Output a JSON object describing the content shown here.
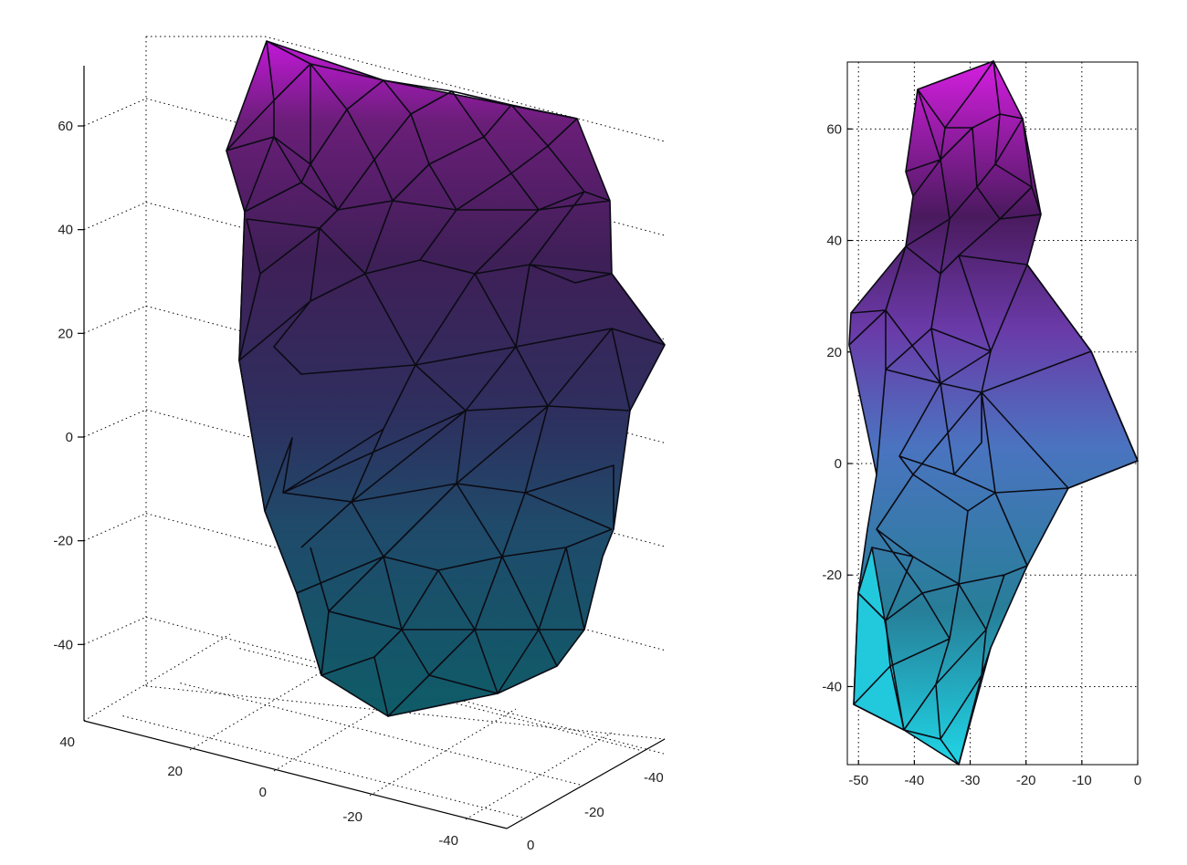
{
  "chart_data": [
    {
      "type": "surface3d",
      "title": "",
      "xlabel": "",
      "ylabel": "",
      "zlabel": "",
      "z_ticks": [
        60,
        40,
        20,
        0,
        -20,
        -40
      ],
      "x_ticks": [
        40,
        20,
        0,
        -20,
        -40
      ],
      "y_ticks": [
        -40,
        -20,
        0
      ],
      "zlim": [
        -50,
        70
      ],
      "grid": true,
      "colormap": [
        "#0f5c68",
        "#1f4a6a",
        "#2e2f5e",
        "#3f1f57",
        "#4d1650",
        "#c218d8"
      ]
    },
    {
      "type": "surface2d",
      "title": "",
      "xlabel": "",
      "ylabel": "",
      "x_ticks": [
        -50,
        -40,
        -30,
        -20,
        -10,
        0
      ],
      "y_ticks": [
        60,
        40,
        20,
        0,
        -20,
        -40
      ],
      "xlim": [
        -52,
        0
      ],
      "ylim": [
        -54,
        72
      ],
      "grid": true,
      "colormap": [
        "#1fd6e6",
        "#277e98",
        "#4a74c0",
        "#6a3aa8",
        "#4a1a5e",
        "#d51ee0"
      ]
    }
  ]
}
